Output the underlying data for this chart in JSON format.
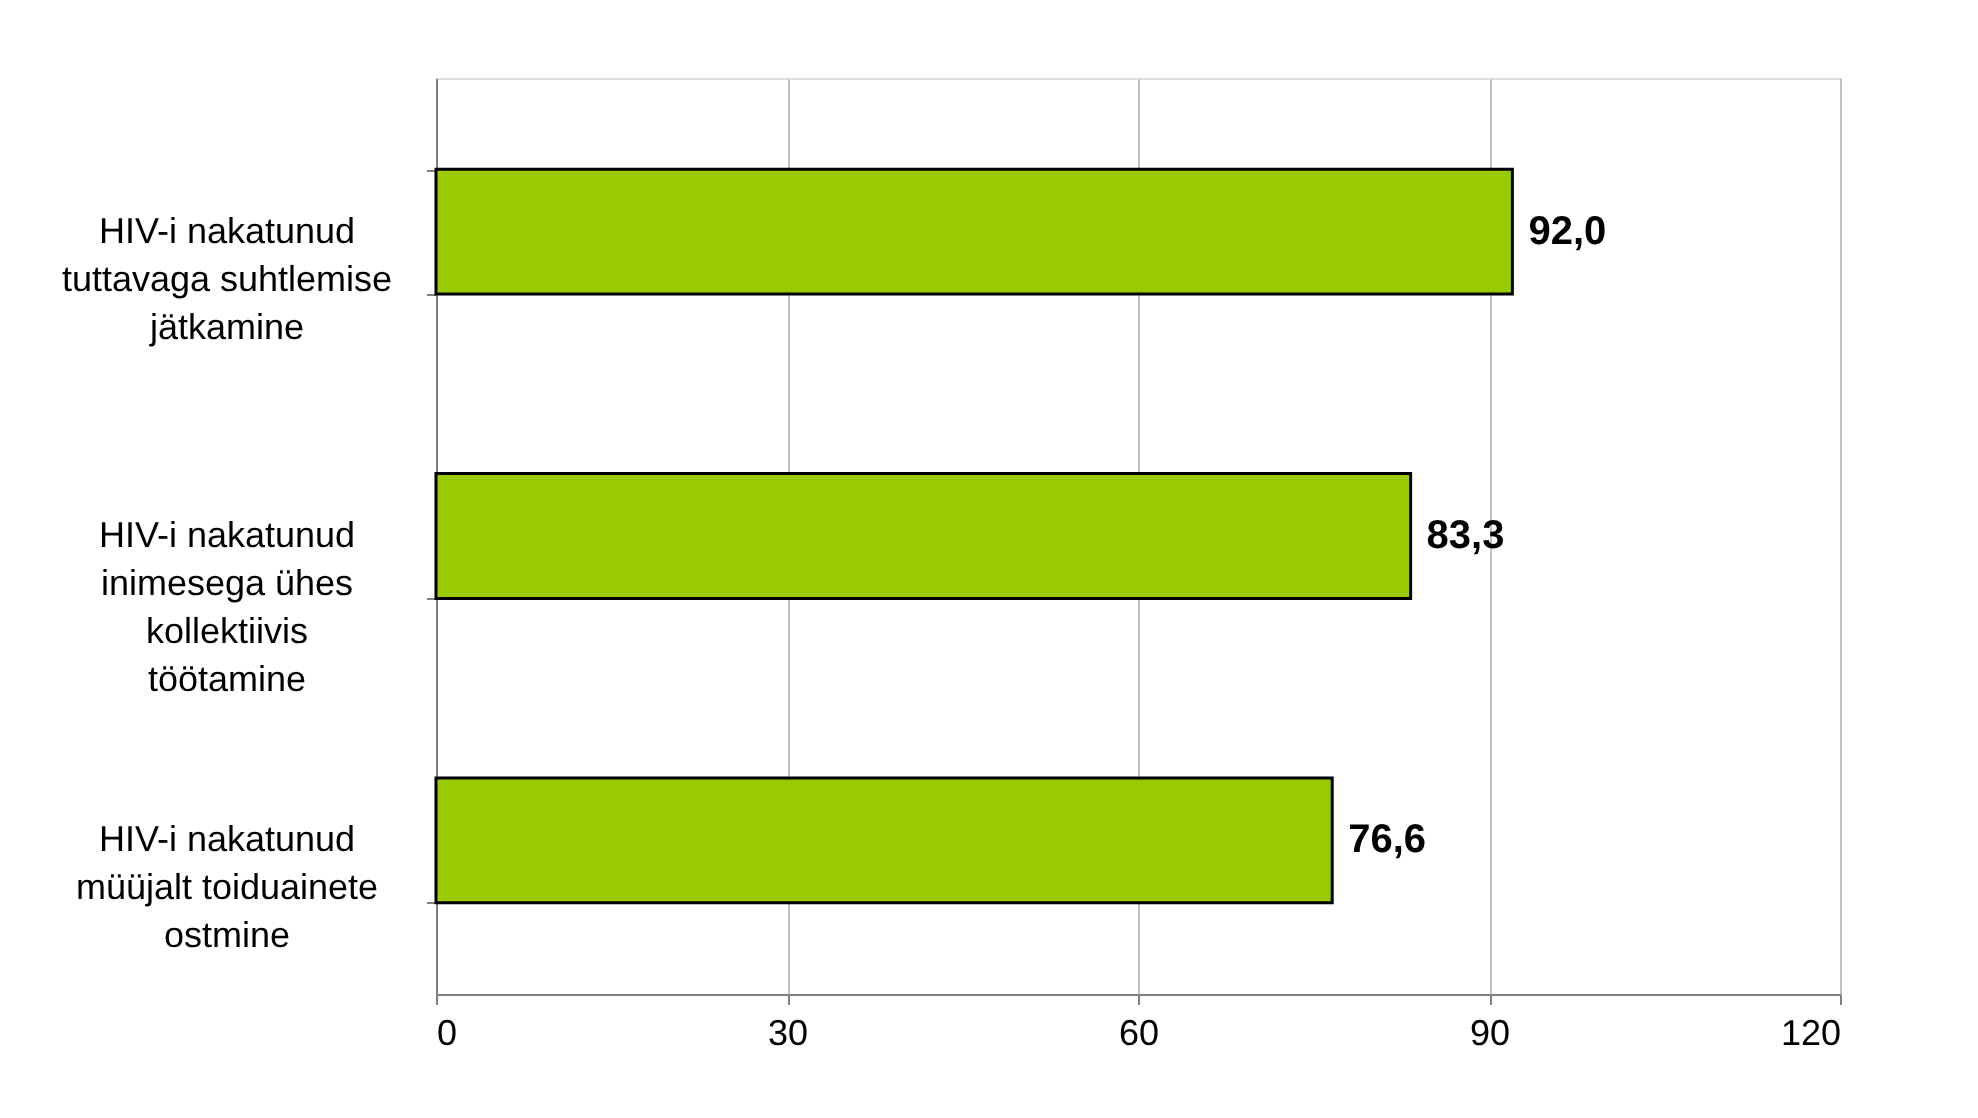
{
  "chart_data": {
    "type": "bar",
    "orientation": "horizontal",
    "categories": [
      "HIV-i nakatunud tuttavaga suhtlemise jätkamine",
      "HIV-i nakatunud inimesega ühes kollektiivis töötamine",
      "HIV-i nakatunud müüjalt toiduainete ostmine"
    ],
    "values": [
      92.0,
      83.3,
      76.6
    ],
    "color": "#99cc00",
    "value_labels": [
      "92,0",
      "83,3",
      "76,6"
    ],
    "xlim": [
      0,
      120
    ],
    "xticks": [
      0,
      30,
      60,
      90,
      120
    ],
    "grid": "x"
  }
}
